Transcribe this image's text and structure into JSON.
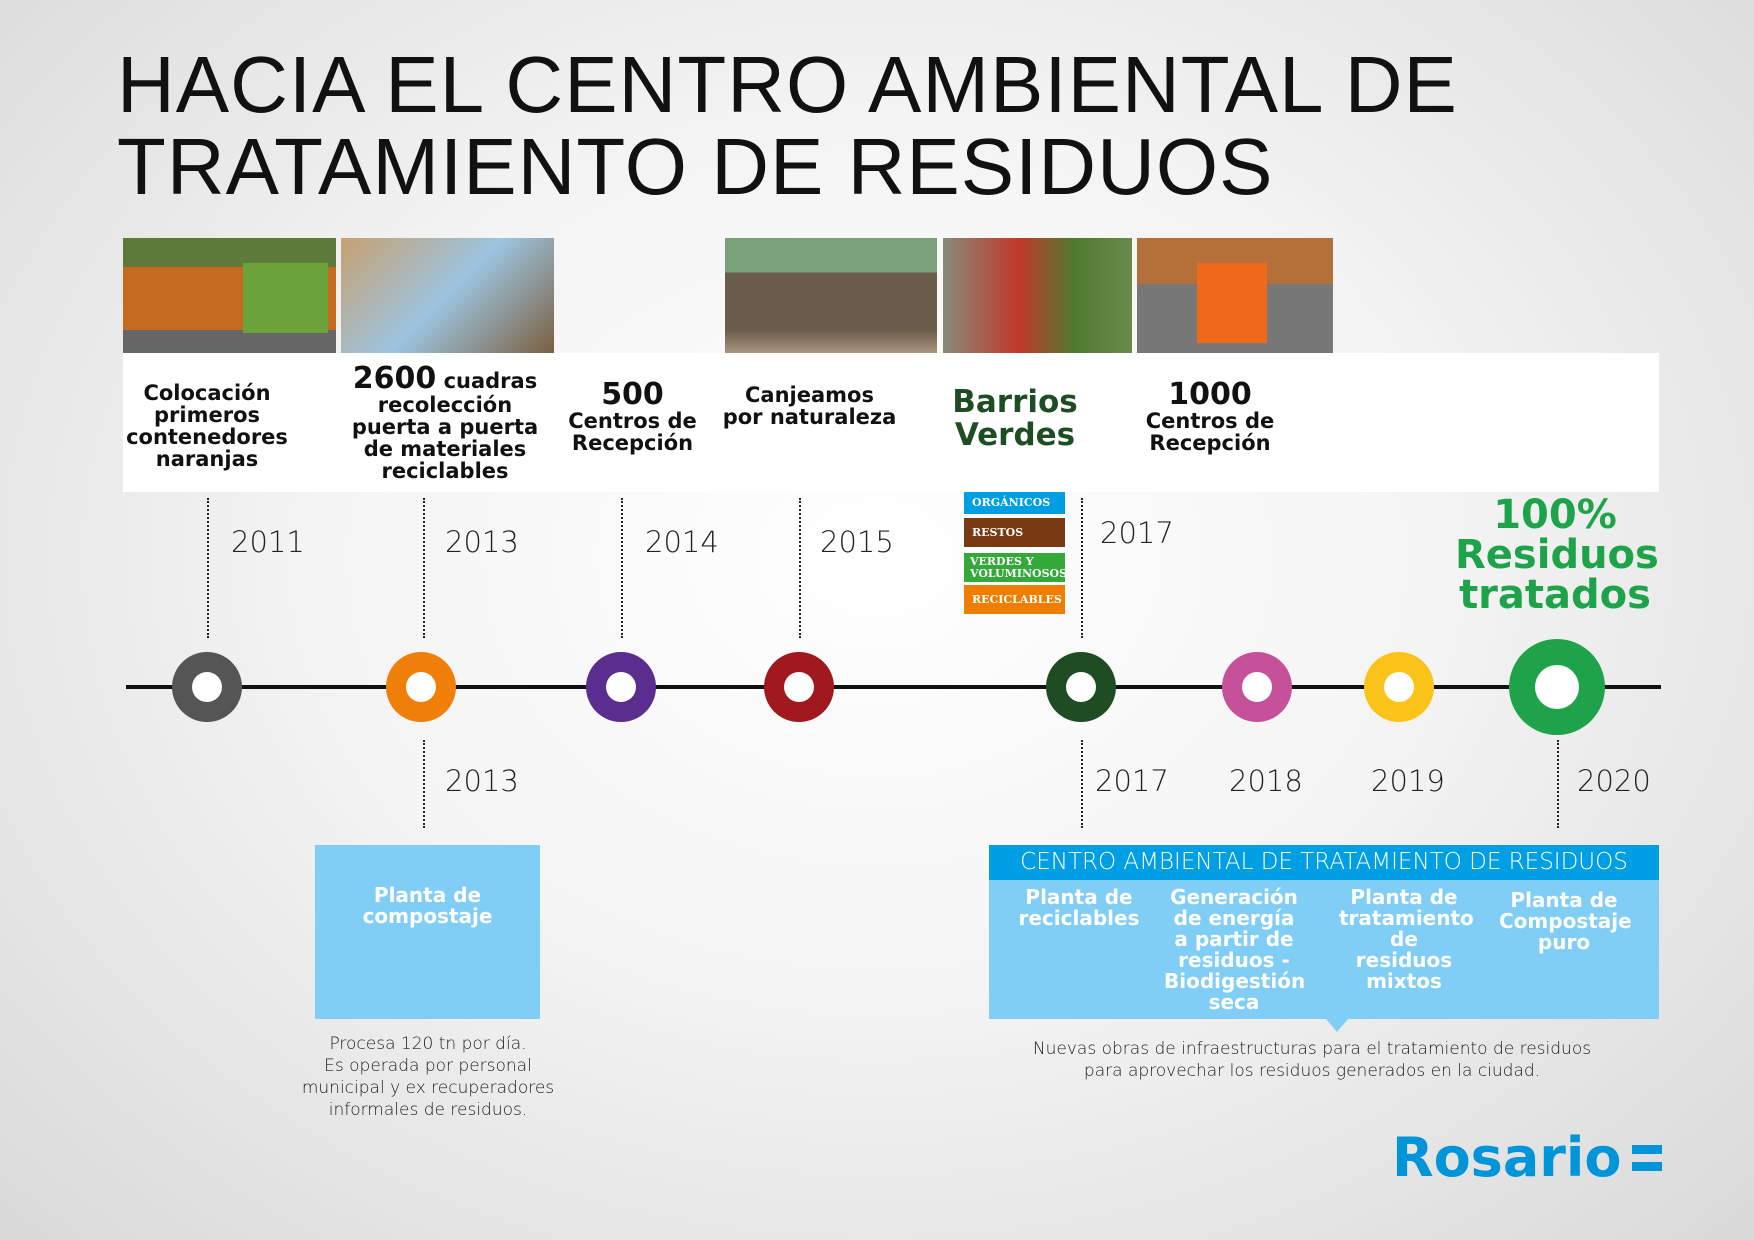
{
  "title": {
    "line1": "HACIA EL CENTRO AMBIENTAL DE",
    "line2": "TRATAMIENTO DE RESIDUOS"
  },
  "events_top": [
    {
      "year": "2011",
      "text": "Colocación primeros contenedores naranjas",
      "color": "#555555"
    },
    {
      "year": "2013",
      "highlight": "2600",
      "text": "cuadras recolección puerta a puerta de materiales reciclables",
      "color": "#f07f0a"
    },
    {
      "year": "2014",
      "highlight": "500",
      "text": "Centros de Recepción",
      "color": "#5b2d8e"
    },
    {
      "year": "2015",
      "text": "Canjeamos por naturaleza",
      "color": "#a0191e"
    },
    {
      "year": "2017",
      "highlight": "Barrios Verdes",
      "color": "#1e4d24"
    },
    {
      "highlight": "1000",
      "text": "Centros de Recepción"
    }
  ],
  "legend": [
    {
      "label": "ORGÁNICOS",
      "color": "#009fe3"
    },
    {
      "label": "RESTOS",
      "color": "#773a13"
    },
    {
      "label": "VERDES Y VOLUMINOSOS",
      "color": "#35a83a"
    },
    {
      "label": "RECICLABLES",
      "color": "#ef7d00"
    }
  ],
  "goal": {
    "line1": "100%",
    "line2": "Residuos",
    "line3": "tratados",
    "color": "#1fa34a"
  },
  "years_bottom": [
    "2013",
    "2017",
    "2018",
    "2019",
    "2020"
  ],
  "bottom_circle_colors": {
    "2018": "#c4519a",
    "2019": "#fbc21a",
    "2020": "#1fa34a"
  },
  "compost": {
    "title": "Planta de compostaje",
    "desc1": "Procesa 120 tn por día.",
    "desc2": "Es operada por personal",
    "desc3": "municipal y ex recuperadores",
    "desc4": "informales de residuos."
  },
  "centro": {
    "header": "CENTRO AMBIENTAL DE TRATAMIENTO DE RESIDUOS",
    "items": [
      "Planta de reciclables",
      "Generación de energía a partir de residuos - Biodigestión seca",
      "Planta de tratamiento de residuos mixtos",
      "Planta de Compostaje puro"
    ],
    "caption1": "Nuevas obras de infraestructuras para el tratamiento de residuos",
    "caption2": "para  aprovechar los residuos generados en la ciudad."
  },
  "logo": {
    "text": "Rosario",
    "color": "#0095d9"
  }
}
